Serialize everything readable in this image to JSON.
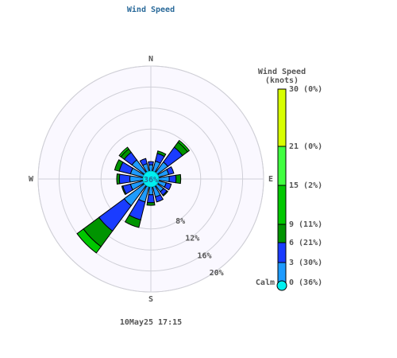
{
  "chart_data": {
    "type": "windrose",
    "title": "Wind Speed",
    "footer": "10May25 17:15",
    "categories": [
      "N",
      null,
      null,
      null,
      "E",
      null,
      null,
      null,
      "S",
      null,
      null,
      null,
      "W",
      null,
      null,
      null
    ],
    "series": [
      {
        "color": "#1e9bff",
        "values": [
          1.2,
          2,
          2.5,
          2,
          2,
          1.5,
          1.5,
          2,
          1.5,
          3,
          4.8,
          2.5,
          2.5,
          2.5,
          3,
          1.5
        ]
      },
      {
        "color": "#1a3cff",
        "values": [
          0.6,
          1.5,
          3.5,
          1,
          1.3,
          1,
          0.8,
          1,
          1.5,
          3.5,
          6,
          1.5,
          2,
          2.2,
          1.8,
          1
        ]
      },
      {
        "color": "#009400",
        "values": [
          0,
          0.5,
          1.2,
          0,
          0.9,
          0,
          0.2,
          0,
          0.5,
          1.5,
          3.7,
          0.2,
          0.5,
          0.9,
          0.8,
          0
        ]
      },
      {
        "color": "#00c800",
        "values": [
          0,
          0,
          0.4,
          0,
          0,
          0,
          0,
          0,
          0,
          0,
          1.5,
          0,
          0,
          0,
          0.4,
          0
        ]
      }
    ],
    "rlim": [
      0,
      20
    ],
    "rticks": [
      {
        "value": 8,
        "label": "8%"
      },
      {
        "value": 12,
        "label": "12%"
      },
      {
        "value": 16,
        "label": "16%"
      },
      {
        "value": 20,
        "label": "20%"
      }
    ],
    "calm": {
      "value": 36,
      "value_label": "36%",
      "color": "#00f0f0"
    },
    "legend": {
      "title": "Wind Speed",
      "subtitle": "(knots)",
      "calm_label": "Calm",
      "labels": [
        "0 (36%)",
        "3 (30%)",
        "6 (21%)",
        "9 (11%)",
        "15 (2%)",
        "21 (0%)",
        "30 (0%)"
      ],
      "colors": [
        "#1e9bff",
        "#1a3cff",
        "#009400",
        "#00c800",
        "#40ff40",
        "#d8ff00"
      ]
    }
  }
}
